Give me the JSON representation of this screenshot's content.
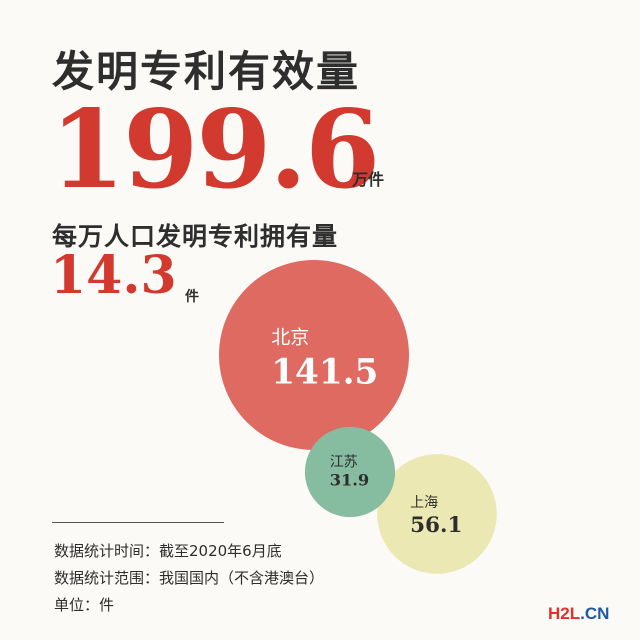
{
  "title": "发明专利有效量",
  "total": {
    "value": "199.6",
    "unit": "万件"
  },
  "per_capita": {
    "label": "每万人口发明专利拥有量",
    "value": "14.3",
    "unit": "件"
  },
  "notes": {
    "time": "数据统计时间：截至2020年6月底",
    "scope": "数据统计范围：我国国内（不含港澳台）",
    "unit": "单位：件"
  },
  "watermark": {
    "part1": "H2L",
    "part2": ".CN"
  },
  "chart_data": {
    "type": "bubble",
    "title": "",
    "unit": "件",
    "categories": [
      "北京",
      "江苏",
      "上海"
    ],
    "values": [
      141.5,
      31.9,
      56.1
    ],
    "colors": [
      "#de6a62",
      "#86bca0",
      "#ece8b4"
    ],
    "label_colors": [
      "#ffffff",
      "#2e2e2e",
      "#2e2e2e"
    ]
  }
}
